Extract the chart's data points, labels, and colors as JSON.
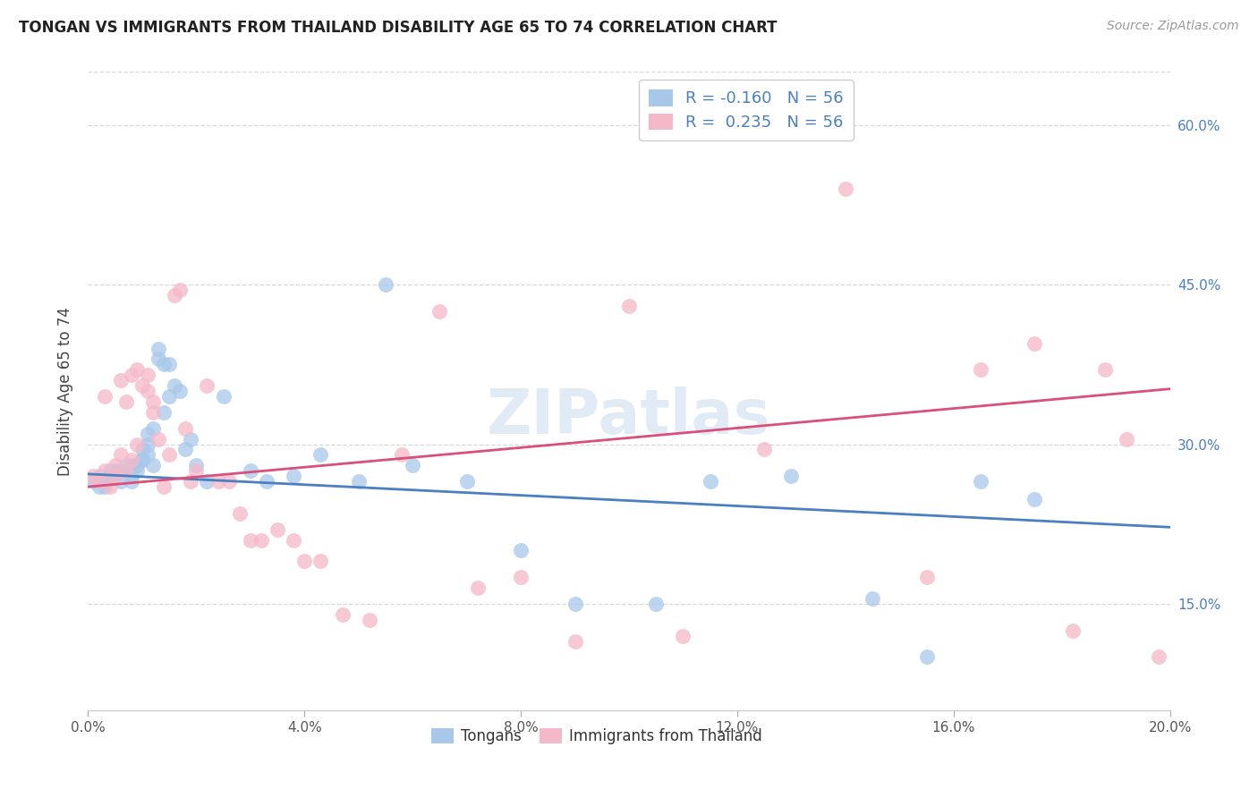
{
  "title": "TONGAN VS IMMIGRANTS FROM THAILAND DISABILITY AGE 65 TO 74 CORRELATION CHART",
  "source": "Source: ZipAtlas.com",
  "ylabel": "Disability Age 65 to 74",
  "legend_blue_r": "-0.160",
  "legend_blue_n": "56",
  "legend_pink_r": "0.235",
  "legend_pink_n": "56",
  "legend_label_blue": "Tongans",
  "legend_label_pink": "Immigrants from Thailand",
  "blue_color": "#a8c8ea",
  "pink_color": "#f5b8c8",
  "blue_line_color": "#4a7fc1",
  "pink_line_color": "#d9507a",
  "text_color_blue": "#4a7fc1",
  "watermark": "ZIPatlas",
  "blue_scatter_x": [
    0.001,
    0.002,
    0.002,
    0.003,
    0.003,
    0.004,
    0.004,
    0.005,
    0.005,
    0.006,
    0.006,
    0.007,
    0.007,
    0.008,
    0.008,
    0.008,
    0.009,
    0.009,
    0.01,
    0.01,
    0.01,
    0.011,
    0.011,
    0.011,
    0.012,
    0.012,
    0.013,
    0.013,
    0.014,
    0.014,
    0.015,
    0.015,
    0.016,
    0.017,
    0.018,
    0.019,
    0.02,
    0.022,
    0.025,
    0.03,
    0.033,
    0.038,
    0.043,
    0.05,
    0.055,
    0.06,
    0.07,
    0.08,
    0.09,
    0.105,
    0.115,
    0.13,
    0.145,
    0.155,
    0.165,
    0.175
  ],
  "blue_scatter_y": [
    0.265,
    0.27,
    0.26,
    0.265,
    0.26,
    0.27,
    0.275,
    0.275,
    0.27,
    0.275,
    0.265,
    0.28,
    0.275,
    0.27,
    0.28,
    0.265,
    0.28,
    0.275,
    0.285,
    0.295,
    0.285,
    0.31,
    0.29,
    0.3,
    0.315,
    0.28,
    0.38,
    0.39,
    0.33,
    0.375,
    0.375,
    0.345,
    0.355,
    0.35,
    0.295,
    0.305,
    0.28,
    0.265,
    0.345,
    0.275,
    0.265,
    0.27,
    0.29,
    0.265,
    0.45,
    0.28,
    0.265,
    0.2,
    0.15,
    0.15,
    0.265,
    0.27,
    0.155,
    0.1,
    0.265,
    0.248
  ],
  "pink_scatter_x": [
    0.001,
    0.002,
    0.003,
    0.003,
    0.004,
    0.005,
    0.005,
    0.006,
    0.006,
    0.007,
    0.007,
    0.008,
    0.008,
    0.009,
    0.009,
    0.01,
    0.011,
    0.011,
    0.012,
    0.012,
    0.013,
    0.014,
    0.015,
    0.016,
    0.017,
    0.018,
    0.019,
    0.02,
    0.022,
    0.024,
    0.026,
    0.028,
    0.03,
    0.032,
    0.035,
    0.038,
    0.04,
    0.043,
    0.047,
    0.052,
    0.058,
    0.065,
    0.072,
    0.08,
    0.09,
    0.1,
    0.11,
    0.125,
    0.14,
    0.155,
    0.165,
    0.175,
    0.182,
    0.188,
    0.192,
    0.198
  ],
  "pink_scatter_y": [
    0.27,
    0.265,
    0.275,
    0.345,
    0.26,
    0.27,
    0.28,
    0.29,
    0.36,
    0.275,
    0.34,
    0.285,
    0.365,
    0.37,
    0.3,
    0.355,
    0.35,
    0.365,
    0.33,
    0.34,
    0.305,
    0.26,
    0.29,
    0.44,
    0.445,
    0.315,
    0.265,
    0.275,
    0.355,
    0.265,
    0.265,
    0.235,
    0.21,
    0.21,
    0.22,
    0.21,
    0.19,
    0.19,
    0.14,
    0.135,
    0.29,
    0.425,
    0.165,
    0.175,
    0.115,
    0.43,
    0.12,
    0.295,
    0.54,
    0.175,
    0.37,
    0.395,
    0.125,
    0.37,
    0.305,
    0.1
  ],
  "xlim": [
    0.0,
    0.2
  ],
  "ylim": [
    0.05,
    0.65
  ],
  "x_ticks": [
    0.0,
    0.04,
    0.08,
    0.12,
    0.16,
    0.2
  ],
  "x_tick_labels": [
    "0.0%",
    "4.0%",
    "8.0%",
    "12.0%",
    "16.0%",
    "20.0%"
  ],
  "y_ticks": [
    0.15,
    0.3,
    0.45,
    0.6
  ],
  "y_tick_labels": [
    "15.0%",
    "30.0%",
    "45.0%",
    "60.0%"
  ],
  "blue_line_y0": 0.272,
  "blue_line_y1": 0.222,
  "pink_line_y0": 0.26,
  "pink_line_y1": 0.352,
  "grid_color": "#d8d8d8",
  "spine_color": "#cccccc"
}
